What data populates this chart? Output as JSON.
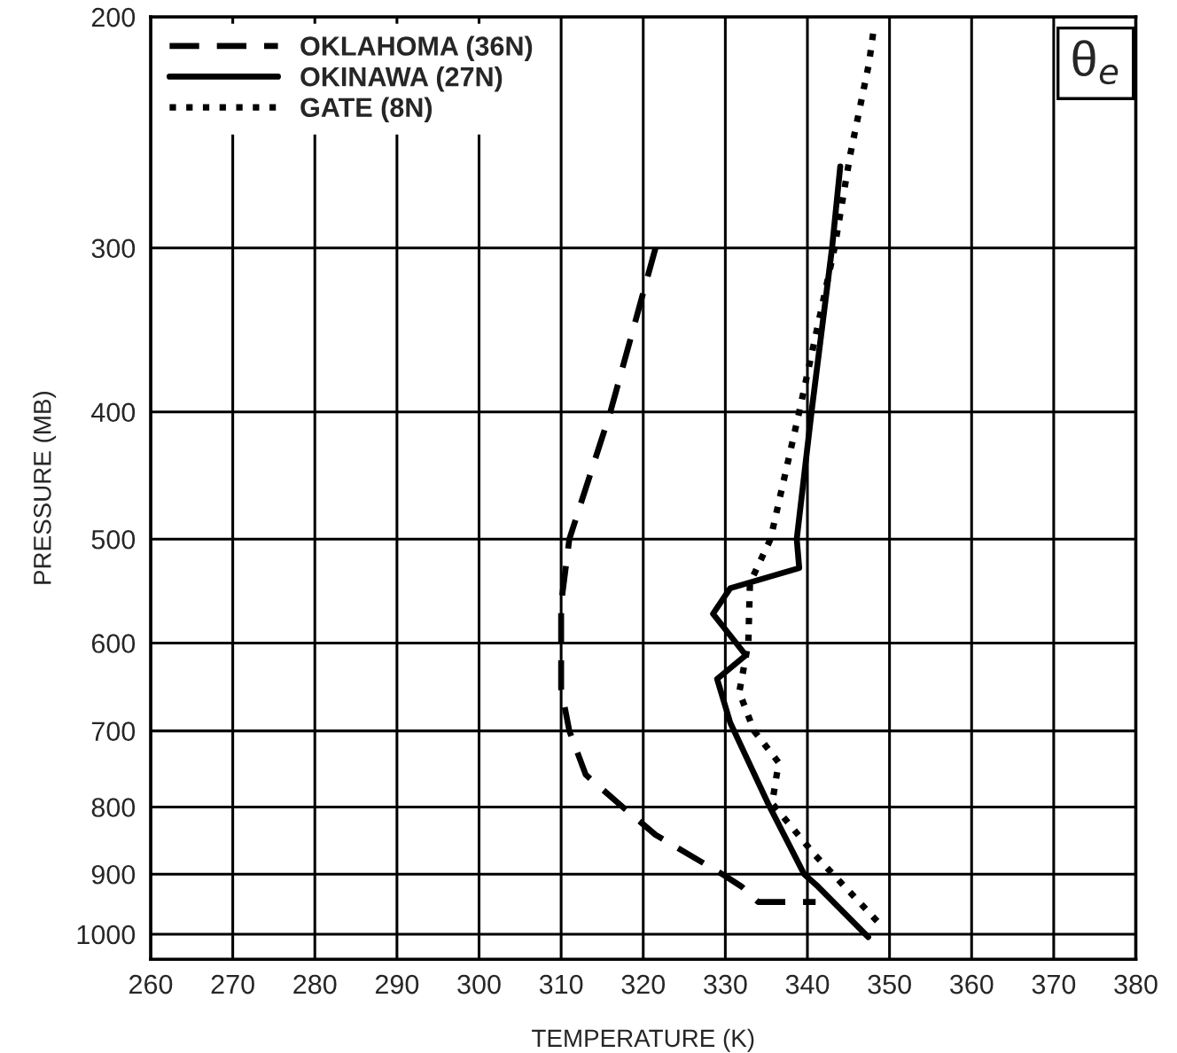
{
  "chart_data": {
    "type": "line",
    "xlabel": "TEMPERATURE (K)",
    "ylabel": "PRESSURE (MB)",
    "xlim": [
      260,
      380
    ],
    "xticks": [
      260,
      270,
      280,
      290,
      300,
      310,
      320,
      330,
      340,
      350,
      360,
      370,
      380
    ],
    "ylim": [
      1045,
      200
    ],
    "yticks": [
      200,
      300,
      400,
      500,
      600,
      700,
      800,
      900,
      1000
    ],
    "log": "y",
    "grid": true,
    "legend": "top left",
    "marker": "none",
    "annotations": [
      "θ$_{e}$"
    ],
    "series": [
      {
        "name": "OKLAHOMA (36N)",
        "color": "#000000",
        "line_style": "dashed",
        "x": [
          321.5,
          316,
          311,
          310,
          310,
          311,
          313,
          317,
          321.5,
          324,
          330,
          332,
          334,
          341
        ],
        "values": [
          300,
          400,
          500,
          560,
          650,
          700,
          756,
          795,
          840,
          858,
          903,
          920,
          945,
          945
        ]
      },
      {
        "name": "OKINAWA (27N)",
        "color": "#000000",
        "line_style": "solid",
        "x": [
          344,
          343,
          340.5,
          338.7,
          339,
          330.6,
          328.5,
          332.5,
          329,
          330.6,
          335.2,
          339.6,
          341.3,
          347.4
        ],
        "values": [
          260,
          300,
          400,
          500,
          526,
          545,
          570,
          613,
          639,
          690,
          795,
          900,
          920,
          1005
        ]
      },
      {
        "name": "GATE (8N)",
        "color": "#000000",
        "line_style": "dotted",
        "x": [
          348,
          347.5,
          345.2,
          343.3,
          339,
          335.5,
          333,
          332.8,
          331.7,
          333.5,
          336.5,
          335.7,
          340.9,
          349
        ],
        "values": [
          206,
          217,
          255,
          300,
          400,
          500,
          540,
          600,
          654,
          700,
          740,
          795,
          870,
          985
        ]
      }
    ]
  }
}
